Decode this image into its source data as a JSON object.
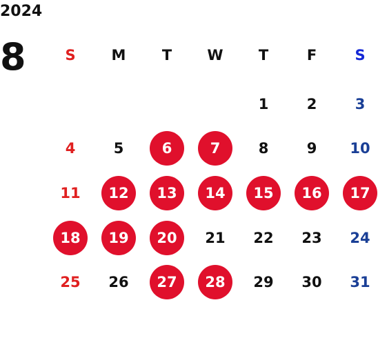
{
  "calendar": {
    "year": "2024",
    "month": "8",
    "weekdays": [
      "S",
      "M",
      "T",
      "W",
      "T",
      "F",
      "S"
    ],
    "first_weekday_index": 4,
    "colors": {
      "sunday": "#e02020",
      "saturday": "#1a3f96",
      "saturday_header": "#1428d6",
      "highlight": "#e0102c",
      "text": "#111111"
    },
    "days": [
      {
        "label": "1",
        "circled": false
      },
      {
        "label": "2",
        "circled": false
      },
      {
        "label": "3",
        "circled": false
      },
      {
        "label": "4",
        "circled": false
      },
      {
        "label": "5",
        "circled": false
      },
      {
        "label": "6",
        "circled": true
      },
      {
        "label": "7",
        "circled": true
      },
      {
        "label": "8",
        "circled": false
      },
      {
        "label": "9",
        "circled": false
      },
      {
        "label": "10",
        "circled": false
      },
      {
        "label": "11",
        "circled": false
      },
      {
        "label": "12",
        "circled": true
      },
      {
        "label": "13",
        "circled": true
      },
      {
        "label": "14",
        "circled": true
      },
      {
        "label": "15",
        "circled": true
      },
      {
        "label": "16",
        "circled": true
      },
      {
        "label": "17",
        "circled": true
      },
      {
        "label": "18",
        "circled": true
      },
      {
        "label": "19",
        "circled": true
      },
      {
        "label": "20",
        "circled": true
      },
      {
        "label": "21",
        "circled": false
      },
      {
        "label": "22",
        "circled": false
      },
      {
        "label": "23",
        "circled": false
      },
      {
        "label": "24",
        "circled": false
      },
      {
        "label": "25",
        "circled": false
      },
      {
        "label": "26",
        "circled": false
      },
      {
        "label": "27",
        "circled": true
      },
      {
        "label": "28",
        "circled": true
      },
      {
        "label": "29",
        "circled": false
      },
      {
        "label": "30",
        "circled": false
      },
      {
        "label": "31",
        "circled": false
      }
    ]
  }
}
